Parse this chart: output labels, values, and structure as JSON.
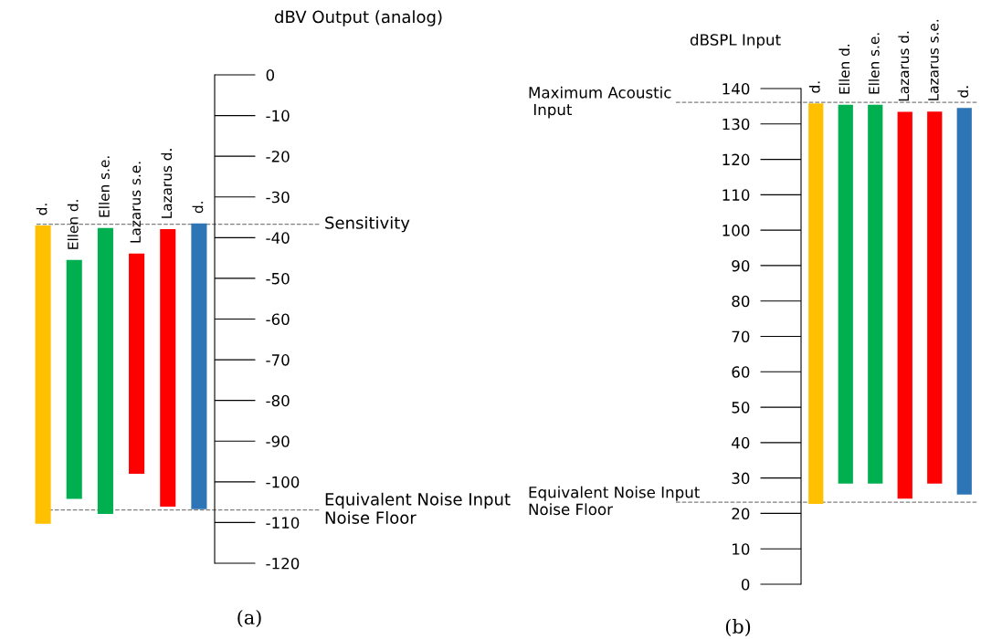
{
  "chart_data": [
    {
      "type": "bar",
      "ylabel": "dBV Output (analog)",
      "categories": [
        "d.",
        "Ellen d.",
        "Ellen s.e.",
        "Lazarus s.e.",
        "Lazarus d.",
        "d."
      ],
      "base": [
        -110.3,
        -104.2,
        -107.9,
        -98.0,
        -106.1,
        -106.7
      ],
      "values": [
        73.3,
        58.7,
        70.3,
        54.1,
        68.2,
        70.2
      ],
      "colors": [
        "#ffc000",
        "#00b050",
        "#00b050",
        "#ff0000",
        "#ff0000",
        "#2e75b6"
      ],
      "ylim": [
        -120,
        0
      ],
      "yticks": [
        -120,
        -110,
        -100,
        -90,
        -80,
        -70,
        -60,
        -50,
        -40,
        -30,
        -20,
        -10,
        0
      ],
      "ref_lines": [
        {
          "axis": "y",
          "value": -36.7,
          "label": "Sensitivity",
          "color": "#808080",
          "line_style": "dashed"
        },
        {
          "axis": "y",
          "value": -106.9,
          "label": "Equivalent Noise Input\nNoise Floor",
          "color": "#808080",
          "line_style": "dashed"
        }
      ],
      "annotations": [
        "(a)"
      ]
    },
    {
      "type": "bar",
      "ylabel": "dBSPL Input",
      "categories": [
        "d.",
        "Ellen d.",
        "Ellen s.e.",
        "Lazarus d.",
        "Lazarus s.e.",
        "d."
      ],
      "base": [
        22.7,
        28.4,
        28.4,
        24.2,
        28.4,
        25.3
      ],
      "values": [
        113.1,
        107.0,
        107.0,
        109.2,
        105.1,
        109.2
      ],
      "colors": [
        "#ffc000",
        "#00b050",
        "#00b050",
        "#ff0000",
        "#ff0000",
        "#2e75b6"
      ],
      "ylim": [
        0,
        140
      ],
      "yticks": [
        0,
        10,
        20,
        30,
        40,
        50,
        60,
        70,
        80,
        90,
        100,
        110,
        120,
        130,
        140
      ],
      "ref_lines": [
        {
          "axis": "y",
          "value": 136.1,
          "label": "Maximum Acoustic\n Input",
          "color": "#808080",
          "line_style": "dashed"
        },
        {
          "axis": "y",
          "value": 23.2,
          "label": "Equivalent Noise Input\nNoise Floor",
          "color": "#808080",
          "line_style": "dashed"
        }
      ],
      "annotations": [
        "(b)"
      ]
    }
  ]
}
